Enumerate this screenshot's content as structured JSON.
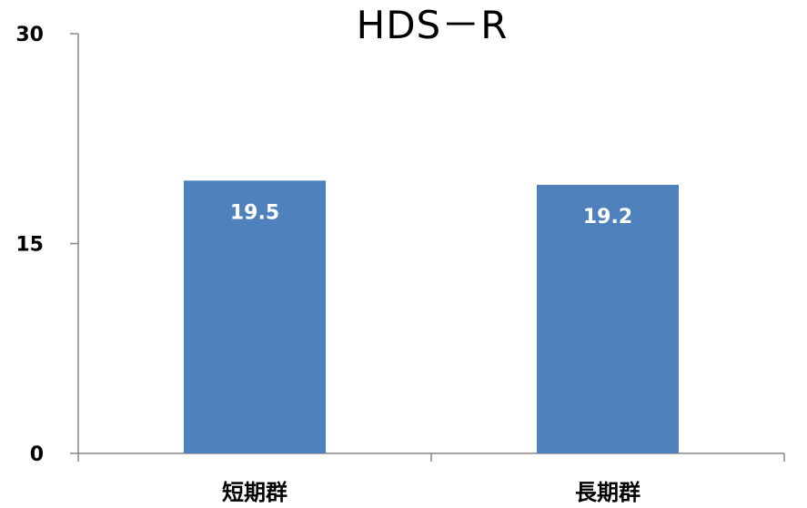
{
  "chart_data": {
    "type": "bar",
    "title": "HDS－R",
    "categories": [
      "短期群",
      "長期群"
    ],
    "values": [
      19.5,
      19.2
    ],
    "value_labels": [
      "19.5",
      "19.2"
    ],
    "ylim": [
      0,
      30
    ],
    "yticks": [
      0,
      15,
      30
    ],
    "ytick_labels": [
      "0",
      "15",
      "30"
    ],
    "xlabel": "",
    "ylabel": "",
    "grid": false,
    "legend": "none",
    "bar_color": "#4F81BD"
  }
}
